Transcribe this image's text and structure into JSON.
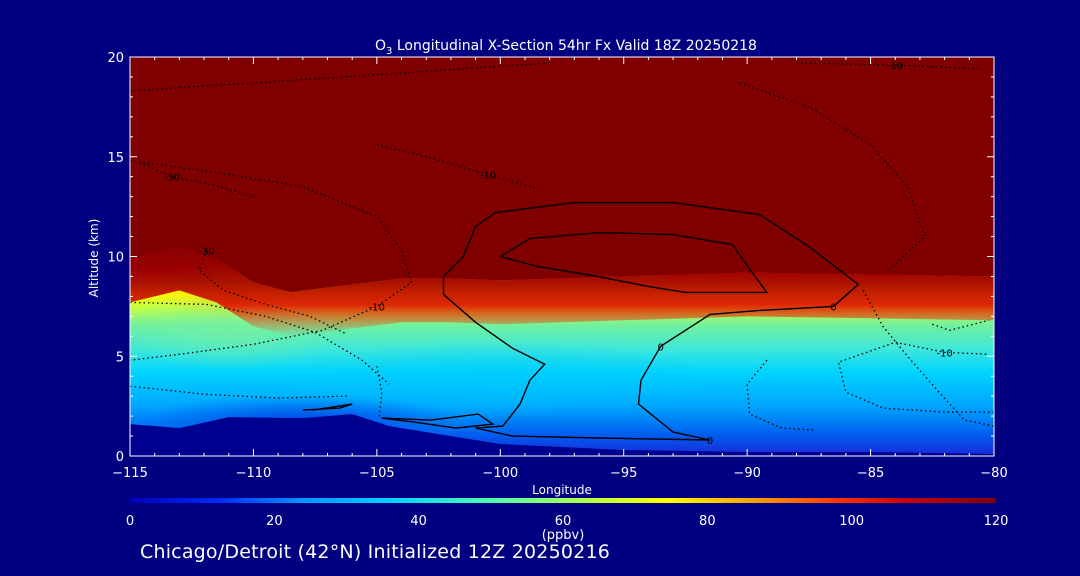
{
  "chart_data": {
    "type": "heatmap",
    "title_prefix": "O",
    "title_subscript": "3",
    "title_rest": " Longitudinal X-Section 54hr  Fx Valid 18Z 20250218",
    "xlabel": "Longitude",
    "ylabel": "Altitude (km)",
    "xlim": [
      -115,
      -80
    ],
    "ylim": [
      0,
      20
    ],
    "x_ticks": [
      -115,
      -110,
      -105,
      -100,
      -95,
      -90,
      -85,
      -80
    ],
    "x_tick_labels": [
      "−115",
      "−110",
      "−105",
      "−100",
      "−95",
      "−90",
      "−85",
      "−80"
    ],
    "y_ticks": [
      0,
      5,
      10,
      15,
      20
    ],
    "y_tick_labels": [
      "0",
      "5",
      "10",
      "15",
      "20"
    ],
    "colorbar": {
      "min": 0,
      "max": 120,
      "ticks": [
        0,
        20,
        40,
        60,
        80,
        100,
        120
      ],
      "tick_labels": [
        "0",
        "20",
        "40",
        "60",
        "80",
        "100",
        "120"
      ],
      "unit_label": "(ppbv)",
      "colors": [
        "#0000b4",
        "#0028ff",
        "#0096ff",
        "#00d2ff",
        "#50ffaa",
        "#c8ff32",
        "#ffff00",
        "#ffa000",
        "#ff3200",
        "#c80000",
        "#800000"
      ]
    },
    "surface_terrain_km": [
      [
        -115,
        1.6
      ],
      [
        -113,
        1.4
      ],
      [
        -111,
        1.95
      ],
      [
        -108,
        1.9
      ],
      [
        -106,
        2.1
      ],
      [
        -104.5,
        1.5
      ],
      [
        -102,
        1.0
      ],
      [
        -100,
        0.6
      ],
      [
        -95,
        0.3
      ],
      [
        -90,
        0.2
      ],
      [
        -85,
        0.2
      ],
      [
        -80,
        0.1
      ]
    ],
    "tropopause_km": [
      [
        -115,
        9.9
      ],
      [
        -113,
        10.5
      ],
      [
        -111.5,
        9.9
      ],
      [
        -110,
        8.7
      ],
      [
        -108.5,
        8.2
      ],
      [
        -106,
        8.6
      ],
      [
        -104,
        8.9
      ],
      [
        -102,
        8.9
      ],
      [
        -100,
        8.8
      ],
      [
        -95,
        9.0
      ],
      [
        -90,
        9.2
      ],
      [
        -85,
        9.1
      ],
      [
        -80,
        9.0
      ]
    ],
    "solid_contours": [
      {
        "level": "0",
        "points": [
          [
            -100.2,
            12.2
          ],
          [
            -97,
            12.7
          ],
          [
            -93,
            12.7
          ],
          [
            -89.5,
            12.1
          ],
          [
            -87.5,
            10.5
          ],
          [
            -85.5,
            8.6
          ],
          [
            -86.5,
            7.5
          ],
          [
            -89.5,
            7.3
          ],
          [
            -91.5,
            7.1
          ],
          [
            -93.5,
            5.5
          ],
          [
            -94.3,
            3.8
          ],
          [
            -94.4,
            2.6
          ],
          [
            -93,
            1.2
          ],
          [
            -91.5,
            0.8
          ],
          [
            -96,
            0.9
          ],
          [
            -99.5,
            1.0
          ],
          [
            -101,
            1.4
          ],
          [
            -99.9,
            1.5
          ],
          [
            -99.2,
            2.6
          ],
          [
            -98.8,
            3.8
          ],
          [
            -98.2,
            4.6
          ],
          [
            -99.5,
            5.4
          ],
          [
            -101,
            6.7
          ],
          [
            -102.3,
            8.1
          ],
          [
            -102.3,
            9.0
          ],
          [
            -101.5,
            10.0
          ],
          [
            -101,
            11.5
          ],
          [
            -100.2,
            12.2
          ]
        ]
      },
      {
        "level": "",
        "points": [
          [
            -100,
            10
          ],
          [
            -98.8,
            10.9
          ],
          [
            -96,
            11.2
          ],
          [
            -93,
            11.1
          ],
          [
            -90.6,
            10.6
          ],
          [
            -89.8,
            9.2
          ],
          [
            -89.2,
            8.2
          ],
          [
            -90.8,
            8.2
          ],
          [
            -92.5,
            8.2
          ],
          [
            -94,
            8.5
          ],
          [
            -96.5,
            9.1
          ],
          [
            -98.5,
            9.5
          ],
          [
            -100,
            10
          ]
        ]
      },
      {
        "level": "",
        "points": [
          [
            -104.8,
            1.9
          ],
          [
            -103.5,
            1.7
          ],
          [
            -101.8,
            1.4
          ],
          [
            -100.3,
            1.6
          ],
          [
            -100.9,
            2.1
          ],
          [
            -102.8,
            1.8
          ],
          [
            -104.8,
            1.9
          ]
        ]
      },
      {
        "level": "",
        "points": [
          [
            -108,
            2.3
          ],
          [
            -106.5,
            2.4
          ],
          [
            -106,
            2.6
          ],
          [
            -107.6,
            2.3
          ]
        ]
      }
    ],
    "dotted_contours": [
      {
        "level": "-10",
        "points": [
          [
            -115,
            14.8
          ],
          [
            -112,
            14.3
          ],
          [
            -108,
            13.5
          ],
          [
            -105,
            12.0
          ],
          [
            -104,
            10.3
          ],
          [
            -103.6,
            8.7
          ],
          [
            -105,
            7.5
          ],
          [
            -107.2,
            6.3
          ],
          [
            -110,
            5.6
          ],
          [
            -113,
            5.1
          ],
          [
            -115,
            4.8
          ]
        ]
      },
      {
        "level": "-10",
        "points": [
          [
            -105,
            15.6
          ],
          [
            -103,
            15.0
          ],
          [
            -100.5,
            14.1
          ],
          [
            -98.5,
            13.4
          ]
        ]
      },
      {
        "level": "-10",
        "points": [
          [
            -88,
            19.7
          ],
          [
            -84,
            19.6
          ],
          [
            -80.5,
            19.4
          ]
        ]
      },
      {
        "level": "-30",
        "points": [
          [
            -111.9,
            10.3
          ],
          [
            -112.2,
            9.3
          ],
          [
            -111.2,
            8.3
          ],
          [
            -109.5,
            7.6
          ],
          [
            -107.7,
            7.0
          ],
          [
            -106.2,
            6.1
          ]
        ]
      },
      {
        "level": "-30",
        "points": [
          [
            -114.6,
            14.7
          ],
          [
            -113.3,
            14.0
          ],
          [
            -111.7,
            13.6
          ],
          [
            -110,
            13.0
          ]
        ]
      },
      {
        "level": "",
        "points": [
          [
            -115,
            7.7
          ],
          [
            -111.9,
            7.6
          ],
          [
            -109.5,
            7.0
          ],
          [
            -107.5,
            6.2
          ],
          [
            -105.6,
            4.8
          ],
          [
            -104.5,
            3.6
          ]
        ]
      },
      {
        "level": "",
        "points": [
          [
            -115,
            3.5
          ],
          [
            -112,
            3.1
          ],
          [
            -109,
            2.9
          ],
          [
            -106.2,
            3.0
          ]
        ]
      },
      {
        "level": "",
        "points": [
          [
            -115,
            18.3
          ],
          [
            -110,
            18.7
          ],
          [
            -104,
            19.2
          ],
          [
            -98,
            19.7
          ]
        ]
      },
      {
        "level": "",
        "points": [
          [
            -90.3,
            18.7
          ],
          [
            -87.5,
            17.5
          ],
          [
            -85,
            15.6
          ],
          [
            -83.5,
            13.5
          ],
          [
            -82.8,
            11.0
          ],
          [
            -84.3,
            9.3
          ]
        ]
      },
      {
        "level": "",
        "points": [
          [
            -85.3,
            8.3
          ],
          [
            -84.5,
            6.5
          ],
          [
            -83.5,
            5.0
          ],
          [
            -82.3,
            3.3
          ],
          [
            -81.2,
            1.8
          ],
          [
            -80,
            1.5
          ]
        ]
      },
      {
        "level": "-10",
        "points": [
          [
            -80,
            2.2
          ],
          [
            -82,
            2.2
          ],
          [
            -84.5,
            2.4
          ],
          [
            -86,
            3.2
          ],
          [
            -86.3,
            4.7
          ],
          [
            -84,
            5.7
          ],
          [
            -82,
            5.2
          ],
          [
            -80.2,
            5.1
          ]
        ]
      },
      {
        "level": "",
        "points": [
          [
            -89.2,
            4.8
          ],
          [
            -90,
            3.6
          ],
          [
            -89.9,
            2.1
          ],
          [
            -88.6,
            1.4
          ],
          [
            -87.2,
            1.3
          ]
        ]
      },
      {
        "level": "",
        "points": [
          [
            -105,
            4.5
          ],
          [
            -104.8,
            3.2
          ],
          [
            -104.9,
            2.0
          ]
        ]
      },
      {
        "level": "",
        "points": [
          [
            -82.5,
            6.6
          ],
          [
            -81.8,
            6.3
          ],
          [
            -80.2,
            6.8
          ]
        ]
      }
    ]
  },
  "footer": "Chicago/Detroit (42°N) Initialized 12Z 20250216"
}
